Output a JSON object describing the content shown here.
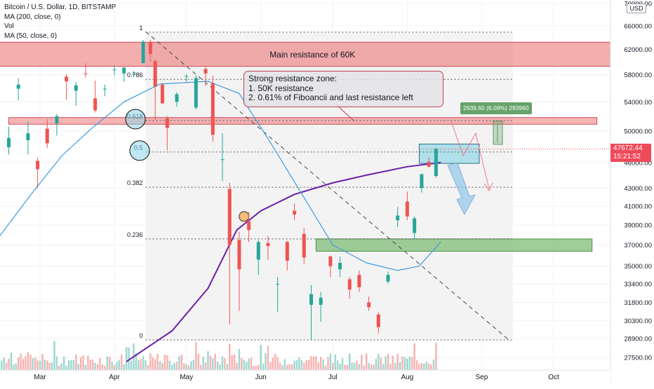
{
  "legend": {
    "symbol": "Bitcoin / U.S. Dollar, 1D, BITSTAMP",
    "ma200": "MA (200, close, 0)",
    "vol": "Vol",
    "ma50": "MA (50, close, 0)"
  },
  "currency_button": "USD",
  "colors": {
    "up": "#26a69a",
    "down": "#ef5350",
    "ma200": "#6a1fa8",
    "ma50": "#3d9be0",
    "resistance_zone": "#ef9a9a",
    "support_zone": "#8bc48a",
    "target_zone": "#8fd8e8"
  },
  "annotation": {
    "line1": "Strong resistance zone:",
    "line2": "1.   50K resistance",
    "line3": "2.   0.61% of Fiboancii and last resistance left"
  },
  "resistance_label": "Main resistance of 60K",
  "measure_label": "2939.60 (6.09%) 293960",
  "fib_levels": [
    "1",
    "0.786",
    "0.618",
    "0.5",
    "0.382",
    "0.236",
    "0"
  ],
  "current_price": {
    "value": "47672.44",
    "countdown": "15:21:52"
  },
  "chart_data": {
    "type": "candlestick",
    "title": "Bitcoin / U.S. Dollar, 1D, BITSTAMP",
    "y_scale": "log",
    "y_ticks": [
      70000,
      66000,
      62000,
      58000,
      54000,
      50000,
      46000,
      43000,
      41000,
      39000,
      37000,
      35000,
      33400,
      31800,
      30300,
      28900,
      27500
    ],
    "y_tick_labels": [
      "70000.00",
      "66000.00",
      "62000.00",
      "58000.00",
      "54000.00",
      "50000.00",
      "46000.00",
      "43000.00",
      "41000.00",
      "39000.00",
      "37000.00",
      "35000.00",
      "33400.00",
      "31800.00",
      "30300.00",
      "28900.00",
      "27500.00"
    ],
    "x_tick_labels": [
      "Mar",
      "Apr",
      "May",
      "Jun",
      "Jul",
      "Aug",
      "Sep",
      "Oct"
    ],
    "x_ticks": [
      "2021-03-01",
      "2021-04-01",
      "2021-05-01",
      "2021-06-01",
      "2021-07-01",
      "2021-08-01",
      "2021-09-01",
      "2021-10-01"
    ],
    "fibonacci": {
      "start_date": "2021-04-14",
      "end_date": "2021-09-14",
      "levels": [
        {
          "ratio": "1",
          "price": 64900
        },
        {
          "ratio": "0.786",
          "price": 57300
        },
        {
          "ratio": "0.618",
          "price": 51400
        },
        {
          "ratio": "0.5",
          "price": 47300
        },
        {
          "ratio": "0.382",
          "price": 43100
        },
        {
          "ratio": "0.236",
          "price": 37600
        },
        {
          "ratio": "0",
          "price": 28800
        }
      ]
    },
    "zones": [
      {
        "name": "Main resistance of 60K",
        "from": "2021-02-12",
        "to": "2021-10-31",
        "low": 59300,
        "high": 63200
      },
      {
        "name": "",
        "from": "2021-02-16",
        "to": "2021-10-19",
        "low": 50900,
        "high": 51800
      },
      {
        "name": "",
        "from": "2021-06-24",
        "to": "2021-10-17",
        "low": 36400,
        "high": 37600
      },
      {
        "name": "",
        "from": "2021-08-06",
        "to": "2021-08-31",
        "low": 45900,
        "high": 48300
      }
    ],
    "trendline": {
      "from_date": "2021-04-14",
      "from_price": 65000,
      "to_date": "2021-09-13",
      "to_price": 28700
    },
    "moving_averages": [
      {
        "name": "MA (200, close, 0)",
        "points": [
          [
            "2021-04-06",
            27200
          ],
          [
            "2021-04-25",
            29500
          ],
          [
            "2021-05-10",
            33000
          ],
          [
            "2021-05-22",
            38500
          ],
          [
            "2021-06-01",
            40500
          ],
          [
            "2021-06-15",
            42300
          ],
          [
            "2021-07-01",
            43600
          ],
          [
            "2021-07-15",
            44500
          ],
          [
            "2021-08-01",
            45500
          ],
          [
            "2021-08-15",
            46000
          ]
        ]
      },
      {
        "name": "MA (50, close, 0)",
        "points": [
          [
            "2021-02-11",
            37500
          ],
          [
            "2021-02-25",
            42200
          ],
          [
            "2021-03-10",
            46800
          ],
          [
            "2021-03-22",
            50200
          ],
          [
            "2021-04-05",
            54000
          ],
          [
            "2021-04-20",
            56600
          ],
          [
            "2021-05-10",
            57000
          ],
          [
            "2021-05-23",
            55200
          ],
          [
            "2021-06-05",
            48500
          ],
          [
            "2021-06-20",
            41500
          ],
          [
            "2021-07-01",
            37000
          ],
          [
            "2021-07-15",
            35300
          ],
          [
            "2021-07-28",
            34600
          ],
          [
            "2021-08-06",
            35000
          ],
          [
            "2021-08-15",
            37300
          ]
        ]
      }
    ],
    "candles": [
      {
        "date": "2021-02-16",
        "o": 47900,
        "h": 50600,
        "l": 47000,
        "c": 49100
      },
      {
        "date": "2021-02-20",
        "o": 55900,
        "h": 57500,
        "l": 54200,
        "c": 56500
      },
      {
        "date": "2021-02-24",
        "o": 48800,
        "h": 51300,
        "l": 47000,
        "c": 49700
      },
      {
        "date": "2021-02-28",
        "o": 46200,
        "h": 46600,
        "l": 43000,
        "c": 45200
      },
      {
        "date": "2021-03-04",
        "o": 50300,
        "h": 51600,
        "l": 47800,
        "c": 48400
      },
      {
        "date": "2021-03-08",
        "o": 51000,
        "h": 52300,
        "l": 49400,
        "c": 52000
      },
      {
        "date": "2021-03-12",
        "o": 57700,
        "h": 58100,
        "l": 54300,
        "c": 57000
      },
      {
        "date": "2021-03-16",
        "o": 55600,
        "h": 56900,
        "l": 53400,
        "c": 56400
      },
      {
        "date": "2021-03-20",
        "o": 58200,
        "h": 59800,
        "l": 57600,
        "c": 58100
      },
      {
        "date": "2021-03-24",
        "o": 54500,
        "h": 57100,
        "l": 52500,
        "c": 52800
      },
      {
        "date": "2021-03-28",
        "o": 55800,
        "h": 56500,
        "l": 54800,
        "c": 55900
      },
      {
        "date": "2021-04-01",
        "o": 58700,
        "h": 59400,
        "l": 57900,
        "c": 58800
      },
      {
        "date": "2021-04-05",
        "o": 58200,
        "h": 59200,
        "l": 56900,
        "c": 59100
      },
      {
        "date": "2021-04-09",
        "o": 58100,
        "h": 58600,
        "l": 57700,
        "c": 58100
      },
      {
        "date": "2021-04-13",
        "o": 59800,
        "h": 63600,
        "l": 59800,
        "c": 63300
      },
      {
        "date": "2021-04-16",
        "o": 63100,
        "h": 63600,
        "l": 60000,
        "c": 61300
      },
      {
        "date": "2021-04-18",
        "o": 60100,
        "h": 60400,
        "l": 51500,
        "c": 56200
      },
      {
        "date": "2021-04-21",
        "o": 56500,
        "h": 56800,
        "l": 53700,
        "c": 53800
      },
      {
        "date": "2021-04-23",
        "o": 51700,
        "h": 52000,
        "l": 47500,
        "c": 50400
      },
      {
        "date": "2021-04-27",
        "o": 54000,
        "h": 55400,
        "l": 53300,
        "c": 55100
      },
      {
        "date": "2021-05-01",
        "o": 57800,
        "h": 58100,
        "l": 56900,
        "c": 57800
      },
      {
        "date": "2021-05-05",
        "o": 53200,
        "h": 57900,
        "l": 52900,
        "c": 57500
      },
      {
        "date": "2021-05-09",
        "o": 58900,
        "h": 59200,
        "l": 56300,
        "c": 58200
      },
      {
        "date": "2021-05-12",
        "o": 56700,
        "h": 57900,
        "l": 48600,
        "c": 49500
      },
      {
        "date": "2021-05-16",
        "o": 46400,
        "h": 49700,
        "l": 43800,
        "c": 46400
      },
      {
        "date": "2021-05-19",
        "o": 42900,
        "h": 43600,
        "l": 30000,
        "c": 37000
      },
      {
        "date": "2021-05-23",
        "o": 37500,
        "h": 38300,
        "l": 31100,
        "c": 34700
      },
      {
        "date": "2021-05-27",
        "o": 39400,
        "h": 40400,
        "l": 37300,
        "c": 38500
      },
      {
        "date": "2021-05-31",
        "o": 35600,
        "h": 37500,
        "l": 34200,
        "c": 37300
      },
      {
        "date": "2021-06-04",
        "o": 37200,
        "h": 37900,
        "l": 35600,
        "c": 36900
      },
      {
        "date": "2021-06-08",
        "o": 33400,
        "h": 34000,
        "l": 31000,
        "c": 33400
      },
      {
        "date": "2021-06-12",
        "o": 37300,
        "h": 37400,
        "l": 34600,
        "c": 35500
      },
      {
        "date": "2021-06-15",
        "o": 40500,
        "h": 41300,
        "l": 39500,
        "c": 40100
      },
      {
        "date": "2021-06-19",
        "o": 38100,
        "h": 38700,
        "l": 35200,
        "c": 35800
      },
      {
        "date": "2021-06-22",
        "o": 31600,
        "h": 33300,
        "l": 28800,
        "c": 32500
      },
      {
        "date": "2021-06-26",
        "o": 31600,
        "h": 32700,
        "l": 30200,
        "c": 32200
      },
      {
        "date": "2021-06-30",
        "o": 35900,
        "h": 36000,
        "l": 34000,
        "c": 35000
      },
      {
        "date": "2021-07-04",
        "o": 34700,
        "h": 35900,
        "l": 34000,
        "c": 35300
      },
      {
        "date": "2021-07-08",
        "o": 33800,
        "h": 34000,
        "l": 32100,
        "c": 32900
      },
      {
        "date": "2021-07-12",
        "o": 34200,
        "h": 34600,
        "l": 32700,
        "c": 33100
      },
      {
        "date": "2021-07-16",
        "o": 31800,
        "h": 32300,
        "l": 31100,
        "c": 31400
      },
      {
        "date": "2021-07-20",
        "o": 30800,
        "h": 31000,
        "l": 29300,
        "c": 29800
      },
      {
        "date": "2021-07-24",
        "o": 33600,
        "h": 34500,
        "l": 33400,
        "c": 34200
      },
      {
        "date": "2021-07-28",
        "o": 39500,
        "h": 40900,
        "l": 38800,
        "c": 40000
      },
      {
        "date": "2021-08-01",
        "o": 41500,
        "h": 42600,
        "l": 39500,
        "c": 39900
      },
      {
        "date": "2021-08-04",
        "o": 38200,
        "h": 39900,
        "l": 37600,
        "c": 39700
      },
      {
        "date": "2021-08-07",
        "o": 43000,
        "h": 44700,
        "l": 42500,
        "c": 44600
      },
      {
        "date": "2021-08-10",
        "o": 46100,
        "h": 46700,
        "l": 45400,
        "c": 45500
      },
      {
        "date": "2021-08-13",
        "o": 44400,
        "h": 47800,
        "l": 44200,
        "c": 47700
      }
    ],
    "volume_description": "volume bars at bottom, red on down days and teal on up days"
  }
}
